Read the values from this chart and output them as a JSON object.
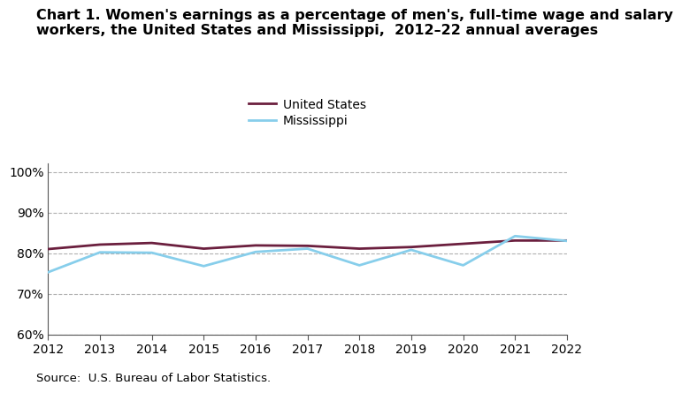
{
  "title_line1": "Chart 1. Women's earnings as a percentage of men's, full-time wage and salary",
  "title_line2": "workers, the United States and Mississippi,  2012–22 annual averages",
  "years": [
    2012,
    2013,
    2014,
    2015,
    2016,
    2017,
    2018,
    2019,
    2020,
    2021,
    2022
  ],
  "us_values": [
    81.0,
    82.1,
    82.5,
    81.1,
    81.9,
    81.8,
    81.1,
    81.5,
    82.3,
    83.1,
    83.1
  ],
  "ms_values": [
    75.3,
    80.2,
    80.1,
    76.8,
    80.3,
    81.1,
    77.0,
    80.8,
    77.0,
    84.2,
    83.0
  ],
  "us_color": "#6b1f3e",
  "ms_color": "#87ceeb",
  "us_label": "United States",
  "ms_label": "Mississippi",
  "ylim": [
    60,
    102
  ],
  "yticks": [
    60,
    70,
    80,
    90,
    100
  ],
  "ytick_labels": [
    "60%",
    "70%",
    "80%",
    "90%",
    "100%"
  ],
  "source": "Source:  U.S. Bureau of Labor Statistics.",
  "background_color": "#ffffff",
  "grid_color": "#b0b0b0",
  "title_fontsize": 11.5,
  "tick_fontsize": 10,
  "legend_fontsize": 10,
  "source_fontsize": 9.5
}
